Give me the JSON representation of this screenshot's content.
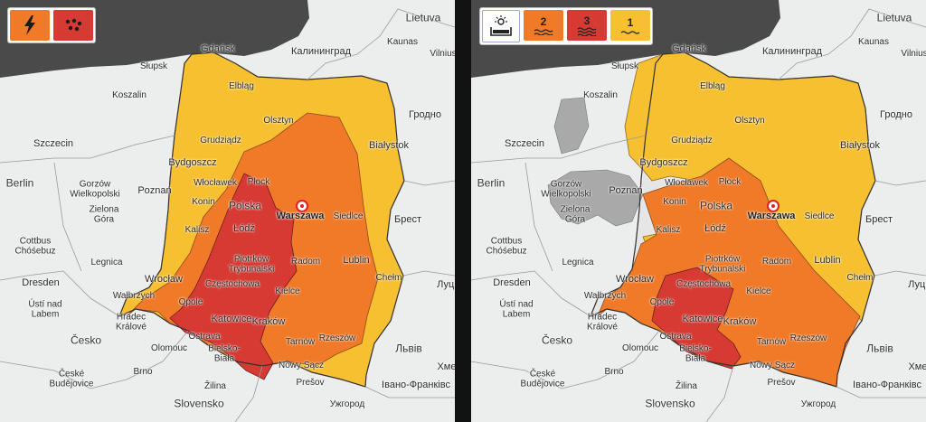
{
  "colors": {
    "level1": "#f7c030",
    "level2": "#f07a28",
    "level3": "#d63a32",
    "inactive": "#a9a9a9",
    "sea": "#4a4a4a",
    "land": "#eceded",
    "poland_base": "#e9e9e9"
  },
  "left_map": {
    "legend": [
      {
        "icon": "lightning-icon",
        "label": ""
      },
      {
        "icon": "hail-icon",
        "label": ""
      }
    ]
  },
  "right_map": {
    "legend": [
      {
        "icon": "heat-icon",
        "label": ""
      },
      {
        "icon": "level-2-wave-icon",
        "label": "2"
      },
      {
        "icon": "level-3-wave-icon",
        "label": "3"
      },
      {
        "icon": "level-1-wave-icon",
        "label": "1"
      }
    ]
  },
  "labels": {
    "lietuva": "Lietuva",
    "kaunas": "Kaunas",
    "vilnius": "Vilnius",
    "kaliningrad": "Калининград",
    "gdansk": "Gdańsk",
    "elblag": "Elbląg",
    "slupsk": "Słupsk",
    "koszalin": "Koszalin",
    "olsztyn": "Olsztyn",
    "grodno": "Гродно",
    "szczecin": "Szczecin",
    "grudziadz": "Grudziądz",
    "bialystok": "Białystok",
    "bydgoszcz": "Bydgoszcz",
    "berlin": "Berlin",
    "gorzow": "Gorzów\nWielkopolski",
    "poznan": "Poznań",
    "wloclawek": "Włocławek",
    "plock": "Płock",
    "konin": "Konin",
    "polska": "Polska",
    "warszawa": "Warszawa",
    "zielona_gora": "Zielona\nGóra",
    "lodz": "Łódź",
    "siedlce": "Siedlce",
    "brest": "Брест",
    "kalisz": "Kalisz",
    "cottbus": "Cottbus\nChóśebuz",
    "piotrkow": "Piotrków\nTrybunalski",
    "radom": "Radom",
    "legnica": "Legnica",
    "lublin": "Lublin",
    "wroclaw": "Wrocław",
    "dresden": "Dresden",
    "walbrzych": "Wałbrzych",
    "czestochowa": "Częstochowa",
    "kielce": "Kielce",
    "chelm": "Chełm",
    "lutsk": "Луцьк",
    "opole": "Opole",
    "usti": "Ústí nad\nLabem",
    "hradec": "Hradec\nKrálové",
    "katowice": "Katowice",
    "krakow": "Kraków",
    "tarnow": "Tarnów",
    "rzeszow": "Rzeszów",
    "cesko": "Česko",
    "olomouc": "Olomouc",
    "ostrava": "Ostrava",
    "bielsko": "Bielsko-\nBiała",
    "lviv": "Львів",
    "nowy_sacz": "Nowy Sącz",
    "brno": "Brno",
    "zilina": "Žilina",
    "presov": "Prešov",
    "khmel": "Хмел",
    "ceske": "České\nBudějovice",
    "slovensko": "Slovensko",
    "ivano": "Івано-Франківс",
    "uzhhorod": "Ужгород"
  }
}
